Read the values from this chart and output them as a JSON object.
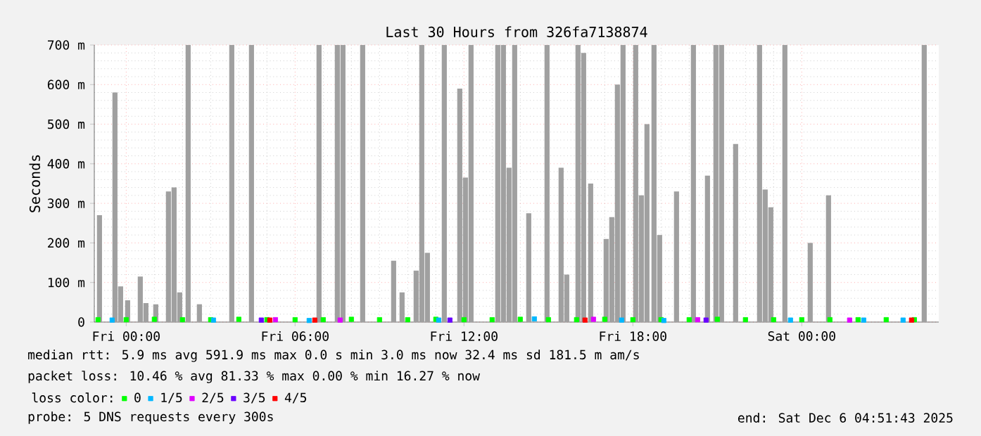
{
  "chart_data": {
    "type": "bar",
    "title": "Last 30 Hours from 326fa7138874",
    "ylabel": "Seconds",
    "xlim": [
      "2025-12-04T22:52",
      "2025-12-06T04:52"
    ],
    "xticks": [
      {
        "value": "2025-12-05T00:00",
        "label": "Fri 00:00"
      },
      {
        "value": "2025-12-05T06:00",
        "label": "Fri 06:00"
      },
      {
        "value": "2025-12-05T12:00",
        "label": "Fri 12:00"
      },
      {
        "value": "2025-12-05T18:00",
        "label": "Fri 18:00"
      },
      {
        "value": "2025-12-06T00:00",
        "label": "Sat 00:00"
      }
    ],
    "ylim": [
      0,
      700
    ],
    "yticks": [
      0,
      {
        "value": 100,
        "label": "100 m"
      },
      {
        "value": 200,
        "label": "200 m"
      },
      {
        "value": 300,
        "label": "300 m"
      },
      {
        "value": 400,
        "label": "400 m"
      },
      {
        "value": 500,
        "label": "500 m"
      },
      {
        "value": 600,
        "label": "600 m"
      },
      {
        "value": 700,
        "label": "700 m"
      }
    ],
    "grid": true,
    "legend": "bottom",
    "legend_title": "loss color:",
    "marker": "square",
    "series": [
      {
        "color": "#a0a0a0",
        "x": [
          "2025-12-04T23:03",
          "2025-12-04T23:36",
          "2025-12-04T23:48",
          "2025-12-05T00:03",
          "2025-12-05T00:30",
          "2025-12-05T00:42",
          "2025-12-05T01:03",
          "2025-12-05T01:30",
          "2025-12-05T01:42",
          "2025-12-05T01:54",
          "2025-12-05T02:12",
          "2025-12-05T02:36",
          "2025-12-05T03:45",
          "2025-12-05T04:27",
          "2025-12-05T06:51",
          "2025-12-05T07:30",
          "2025-12-05T07:42",
          "2025-12-05T08:24",
          "2025-12-05T09:30",
          "2025-12-05T09:48",
          "2025-12-05T10:18",
          "2025-12-05T10:30",
          "2025-12-05T10:42",
          "2025-12-05T11:18",
          "2025-12-05T11:51",
          "2025-12-05T12:03",
          "2025-12-05T12:15",
          "2025-12-05T13:12",
          "2025-12-05T13:24",
          "2025-12-05T13:36",
          "2025-12-05T13:48",
          "2025-12-05T14:18",
          "2025-12-05T14:57",
          "2025-12-05T15:27",
          "2025-12-05T15:39",
          "2025-12-05T16:03",
          "2025-12-05T16:15",
          "2025-12-05T16:30",
          "2025-12-05T17:03",
          "2025-12-05T17:15",
          "2025-12-05T17:27",
          "2025-12-05T17:39",
          "2025-12-05T18:06",
          "2025-12-05T18:18",
          "2025-12-05T18:30",
          "2025-12-05T18:45",
          "2025-12-05T18:57",
          "2025-12-05T19:33",
          "2025-12-05T20:09",
          "2025-12-05T20:39",
          "2025-12-05T20:57",
          "2025-12-05T21:09",
          "2025-12-05T21:39",
          "2025-12-05T22:30",
          "2025-12-05T22:42",
          "2025-12-05T22:54",
          "2025-12-05T23:24",
          "2025-12-06T00:18",
          "2025-12-06T00:57",
          "2025-12-06T04:21"
        ],
        "values": [
          270,
          580,
          90,
          55,
          115,
          48,
          45,
          330,
          340,
          75,
          700,
          45,
          700,
          700,
          700,
          700,
          700,
          700,
          155,
          75,
          130,
          700,
          175,
          700,
          590,
          365,
          700,
          700,
          700,
          390,
          700,
          275,
          700,
          390,
          120,
          700,
          680,
          350,
          210,
          265,
          600,
          700,
          700,
          320,
          500,
          700,
          220,
          330,
          700,
          370,
          700,
          700,
          450,
          700,
          335,
          290,
          700,
          200,
          320,
          700
        ]
      },
      {
        "name": "0",
        "type": "scatter",
        "color": "#00ff00",
        "x": [
          "2025-12-04T23:00",
          "2025-12-05T00:00",
          "2025-12-05T01:00",
          "2025-12-05T02:00",
          "2025-12-05T03:00",
          "2025-12-05T04:00",
          "2025-12-05T05:00",
          "2025-12-05T06:00",
          "2025-12-05T07:00",
          "2025-12-05T08:00",
          "2025-12-05T09:00",
          "2025-12-05T10:00",
          "2025-12-05T11:00",
          "2025-12-05T12:00",
          "2025-12-05T13:00",
          "2025-12-05T14:00",
          "2025-12-05T15:00",
          "2025-12-05T16:00",
          "2025-12-05T17:00",
          "2025-12-05T18:00",
          "2025-12-05T19:00",
          "2025-12-05T20:00",
          "2025-12-05T21:00",
          "2025-12-05T22:00",
          "2025-12-05T23:00",
          "2025-12-06T00:00",
          "2025-12-06T01:00",
          "2025-12-06T02:00",
          "2025-12-06T03:00",
          "2025-12-06T04:00"
        ],
        "values": [
          6,
          6,
          7,
          6,
          6,
          7,
          6,
          6,
          6,
          7,
          6,
          6,
          7,
          6,
          6,
          7,
          6,
          6,
          7,
          6,
          6,
          6,
          7,
          6,
          6,
          6,
          6,
          6,
          6,
          6
        ]
      },
      {
        "name": "1/5",
        "type": "scatter",
        "color": "#00b7ff",
        "x": [
          "2025-12-04T23:30",
          "2025-12-05T03:06",
          "2025-12-05T06:30",
          "2025-12-05T11:06",
          "2025-12-05T14:30",
          "2025-12-05T17:36",
          "2025-12-05T19:06",
          "2025-12-05T23:36",
          "2025-12-06T02:12",
          "2025-12-06T03:36"
        ],
        "values": [
          5,
          5,
          4,
          5,
          8,
          5,
          4,
          5,
          5,
          5
        ]
      },
      {
        "name": "2/5",
        "type": "scatter",
        "color": "#e000ff",
        "x": [
          "2025-12-05T05:18",
          "2025-12-05T07:36",
          "2025-12-05T16:36",
          "2025-12-05T20:18",
          "2025-12-06T01:42"
        ],
        "values": [
          6,
          5,
          7,
          6,
          5
        ]
      },
      {
        "name": "3/5",
        "type": "scatter",
        "color": "#6a00ff",
        "x": [
          "2025-12-05T04:48",
          "2025-12-05T11:30",
          "2025-12-05T20:36"
        ],
        "values": [
          5,
          5,
          5
        ]
      },
      {
        "name": "4/5",
        "type": "scatter",
        "color": "#ff0000",
        "x": [
          "2025-12-05T05:06",
          "2025-12-05T06:42",
          "2025-12-05T16:18",
          "2025-12-06T03:54"
        ],
        "values": [
          5,
          5,
          5,
          5
        ]
      }
    ],
    "annotations": [
      "median rtt:  5.9 ms avg  591.9 ms max  0.0 s min  3.0 ms now  32.4 ms sd  181.5 m am/s",
      "packet loss: 10.46 % avg  81.33 % max  0.00 % min  16.27 % now",
      "probe:   5 DNS requests every 300s",
      "end: Sat Dec 6 04:51:43 2025"
    ]
  }
}
